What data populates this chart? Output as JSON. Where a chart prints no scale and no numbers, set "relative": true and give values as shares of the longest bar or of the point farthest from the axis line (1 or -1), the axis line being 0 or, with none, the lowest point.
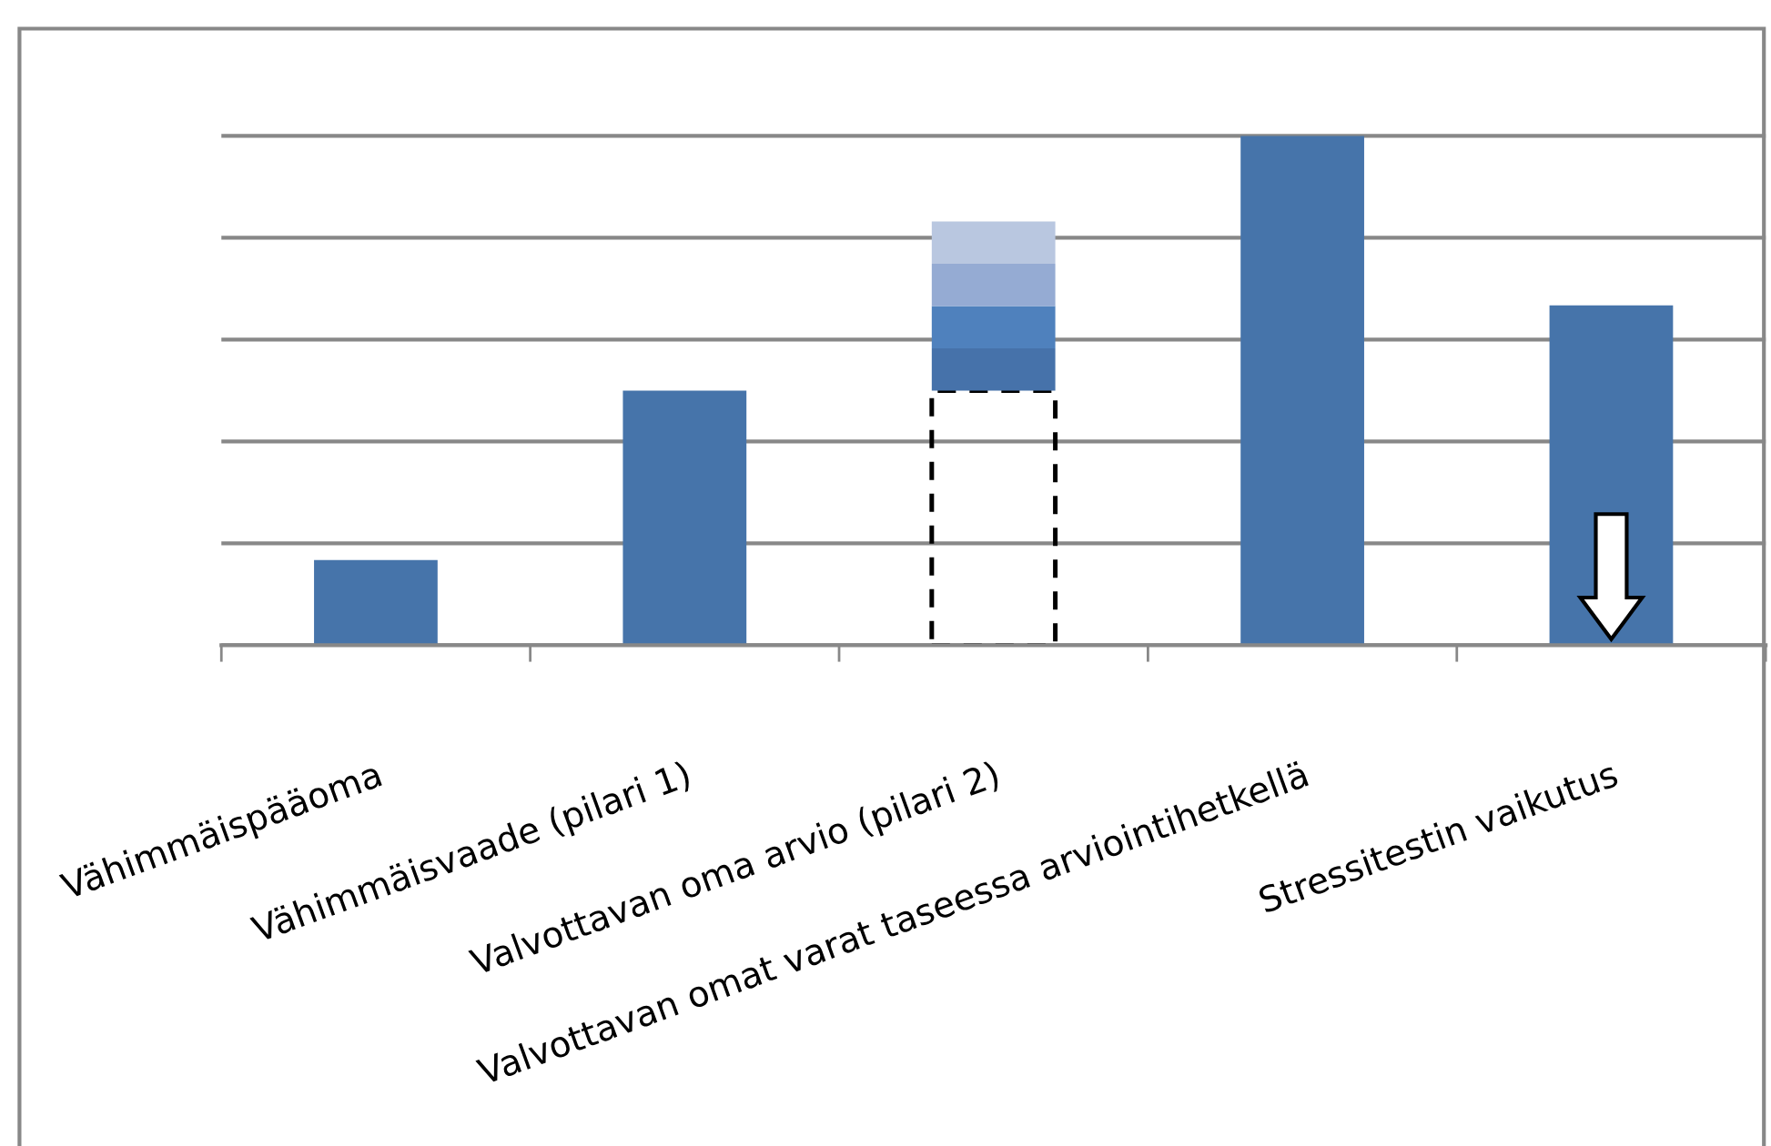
{
  "chart_data": {
    "type": "bar",
    "stacked": true,
    "relative": true,
    "grid": "y",
    "legend": false,
    "categories": [
      "Vähimmäispääoma",
      "Vähimmäisvaade (pilari 1)",
      "Valvottavan oma arvio (pilari 2)",
      "Valvottavan omat varat taseessa arviointihetkellä",
      "Stressitestin vaikutus"
    ],
    "series": [
      {
        "color": "#4674aa",
        "values": [
          0.167,
          0.5,
          null,
          1,
          0.667
        ]
      },
      {
        "color": "#000000",
        "line_style": "dashed",
        "values": [
          null,
          null,
          0.5,
          null,
          null
        ]
      },
      {
        "color": "#4672aa",
        "values": [
          null,
          null,
          0.083,
          null,
          null
        ]
      },
      {
        "color": "#4f81bd",
        "values": [
          null,
          null,
          0.083,
          null,
          null
        ]
      },
      {
        "color": "#95abd3",
        "values": [
          null,
          null,
          0.083,
          null,
          null
        ]
      },
      {
        "color": "#b9c7e0",
        "values": [
          null,
          null,
          0.083,
          null,
          null
        ]
      }
    ]
  }
}
